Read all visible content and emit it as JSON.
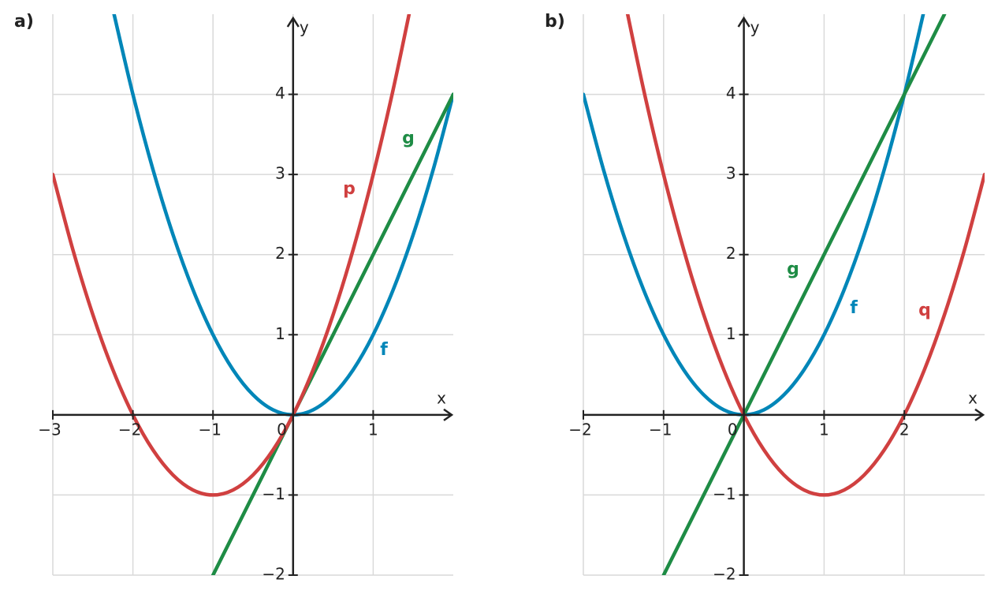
{
  "chart_data": [
    {
      "type": "line",
      "panel_label": "a)",
      "xlabel": "x",
      "ylabel": "y",
      "xlim": [
        -3,
        2
      ],
      "ylim": [
        -2,
        5
      ],
      "grid": true,
      "xticks": [
        {
          "value": -3,
          "label": "−3"
        },
        {
          "value": -2,
          "label": "−2"
        },
        {
          "value": -1,
          "label": "−1"
        },
        0,
        1
      ],
      "yticks": [
        {
          "value": -2,
          "label": "−2"
        },
        {
          "value": -1,
          "label": "−1"
        },
        1,
        2,
        3,
        4
      ],
      "series": [
        {
          "name": "f",
          "color": "#0086b8",
          "x": [
            -2.25,
            -2,
            -1.75,
            -1.5,
            -1.25,
            -1,
            -0.75,
            -0.5,
            -0.25,
            0,
            0.25,
            0.5,
            0.75,
            1,
            1.25,
            1.5,
            1.75,
            2
          ],
          "values": [
            5.0625,
            4,
            3.0625,
            2.25,
            1.5625,
            1,
            0.5625,
            0.25,
            0.0625,
            0,
            0.0625,
            0.25,
            0.5625,
            1,
            1.5625,
            2.25,
            3.0625,
            4
          ]
        },
        {
          "name": "g",
          "color": "#1e8c45",
          "x": [
            -1,
            2
          ],
          "values": [
            -2,
            4
          ]
        },
        {
          "name": "p",
          "color": "#d04040",
          "x": [
            -3,
            -2.75,
            -2.5,
            -2.25,
            -2,
            -1.75,
            -1.5,
            -1.25,
            -1,
            -0.75,
            -0.5,
            -0.25,
            0,
            0.25,
            0.5,
            0.75,
            1,
            1.25,
            1.5
          ],
          "values": [
            3,
            2.0625,
            1.25,
            0.5625,
            0,
            -0.4375,
            -0.75,
            -0.9375,
            -1,
            -0.9375,
            -0.75,
            -0.4375,
            0,
            0.5625,
            1.25,
            2.0625,
            3,
            4.0625,
            5.25
          ]
        }
      ]
    },
    {
      "type": "line",
      "panel_label": "b)",
      "xlabel": "x",
      "ylabel": "y",
      "xlim": [
        -2,
        3
      ],
      "ylim": [
        -2,
        5
      ],
      "grid": true,
      "xticks": [
        {
          "value": -2,
          "label": "−2"
        },
        {
          "value": -1,
          "label": "−1"
        },
        0,
        1,
        2
      ],
      "yticks": [
        {
          "value": -2,
          "label": "−2"
        },
        {
          "value": -1,
          "label": "−1"
        },
        1,
        2,
        3,
        4
      ],
      "series": [
        {
          "name": "f",
          "color": "#0086b8",
          "x": [
            -2,
            -1.75,
            -1.5,
            -1.25,
            -1,
            -0.75,
            -0.5,
            -0.25,
            0,
            0.25,
            0.5,
            0.75,
            1,
            1.25,
            1.5,
            1.75,
            2,
            2.25
          ],
          "values": [
            4,
            3.0625,
            2.25,
            1.5625,
            1,
            0.5625,
            0.25,
            0.0625,
            0,
            0.0625,
            0.25,
            0.5625,
            1,
            1.5625,
            2.25,
            3.0625,
            4,
            5.0625
          ]
        },
        {
          "name": "g",
          "color": "#1e8c45",
          "x": [
            -1,
            2.5
          ],
          "values": [
            -2,
            5
          ]
        },
        {
          "name": "q",
          "color": "#d04040",
          "x": [
            -1.5,
            -1.25,
            -1,
            -0.75,
            -0.5,
            -0.25,
            0,
            0.25,
            0.5,
            0.75,
            1,
            1.25,
            1.5,
            1.75,
            2,
            2.25,
            2.5,
            2.75,
            3
          ],
          "values": [
            5.25,
            4.0625,
            3,
            2.0625,
            1.25,
            0.5625,
            0,
            -0.4375,
            -0.75,
            -0.9375,
            -1,
            -0.9375,
            -0.75,
            -0.4375,
            0,
            0.5625,
            1.25,
            2.0625,
            3
          ]
        }
      ]
    }
  ]
}
